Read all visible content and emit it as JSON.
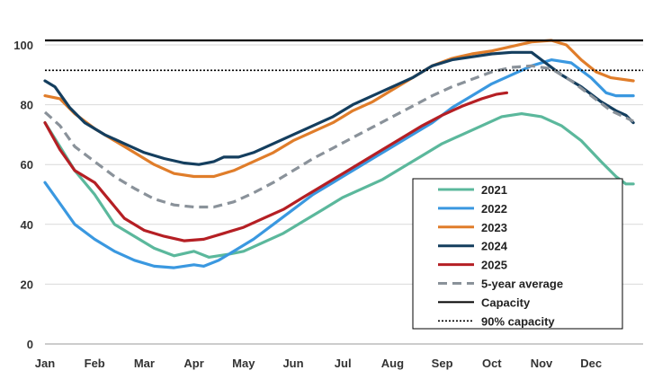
{
  "chart_data": {
    "type": "line",
    "title": "",
    "xlabel": "",
    "ylabel": "",
    "ylim": [
      0,
      100
    ],
    "yticks": [
      0,
      20,
      40,
      60,
      80,
      100
    ],
    "x_ticks": [
      "Jan",
      "Feb",
      "Mar",
      "Apr",
      "May",
      "Jun",
      "Jul",
      "Aug",
      "Sep",
      "Oct",
      "Nov",
      "Dec"
    ],
    "x_range_months": [
      0,
      11.85
    ],
    "grid": "horizontal",
    "legend_position": "bottom-right",
    "series": [
      {
        "name": "2021",
        "color": "#5bb89c",
        "style": "solid",
        "points": [
          [
            0,
            74
          ],
          [
            0.3,
            66
          ],
          [
            0.6,
            58
          ],
          [
            1,
            50
          ],
          [
            1.4,
            40
          ],
          [
            1.8,
            36
          ],
          [
            2.2,
            32
          ],
          [
            2.6,
            29.5
          ],
          [
            3,
            31
          ],
          [
            3.3,
            29
          ],
          [
            3.7,
            30
          ],
          [
            4,
            31
          ],
          [
            4.4,
            34
          ],
          [
            4.8,
            37
          ],
          [
            5.2,
            41
          ],
          [
            5.6,
            45
          ],
          [
            6,
            49
          ],
          [
            6.4,
            52
          ],
          [
            6.8,
            55
          ],
          [
            7.2,
            59
          ],
          [
            7.6,
            63
          ],
          [
            8,
            67
          ],
          [
            8.4,
            70
          ],
          [
            8.8,
            73
          ],
          [
            9.2,
            76
          ],
          [
            9.6,
            77
          ],
          [
            10,
            76
          ],
          [
            10.4,
            73
          ],
          [
            10.8,
            68
          ],
          [
            11.2,
            61
          ],
          [
            11.5,
            56
          ],
          [
            11.7,
            53.5
          ],
          [
            11.85,
            53.5
          ]
        ]
      },
      {
        "name": "2022",
        "color": "#3a98e0",
        "style": "solid",
        "points": [
          [
            0,
            54
          ],
          [
            0.3,
            47
          ],
          [
            0.6,
            40
          ],
          [
            1,
            35
          ],
          [
            1.4,
            31
          ],
          [
            1.8,
            28
          ],
          [
            2.2,
            26
          ],
          [
            2.6,
            25.5
          ],
          [
            3,
            26.5
          ],
          [
            3.2,
            26
          ],
          [
            3.5,
            28
          ],
          [
            3.8,
            31
          ],
          [
            4.2,
            35
          ],
          [
            4.6,
            40
          ],
          [
            5,
            45
          ],
          [
            5.4,
            50
          ],
          [
            5.8,
            54
          ],
          [
            6.2,
            58
          ],
          [
            6.6,
            62
          ],
          [
            7,
            66
          ],
          [
            7.4,
            70
          ],
          [
            7.8,
            74
          ],
          [
            8.2,
            79
          ],
          [
            8.6,
            83
          ],
          [
            9,
            87
          ],
          [
            9.4,
            90
          ],
          [
            9.8,
            93
          ],
          [
            10.2,
            95
          ],
          [
            10.6,
            94
          ],
          [
            11,
            89
          ],
          [
            11.3,
            84
          ],
          [
            11.5,
            83
          ],
          [
            11.85,
            83
          ]
        ]
      },
      {
        "name": "2023",
        "color": "#e07d2a",
        "style": "solid",
        "points": [
          [
            0,
            83
          ],
          [
            0.3,
            82
          ],
          [
            0.6,
            77
          ],
          [
            1,
            72
          ],
          [
            1.4,
            68
          ],
          [
            1.8,
            64
          ],
          [
            2.2,
            60
          ],
          [
            2.6,
            57
          ],
          [
            3,
            56
          ],
          [
            3.4,
            56
          ],
          [
            3.8,
            58
          ],
          [
            4.2,
            61
          ],
          [
            4.6,
            64
          ],
          [
            5,
            68
          ],
          [
            5.4,
            71
          ],
          [
            5.8,
            74
          ],
          [
            6.2,
            78
          ],
          [
            6.6,
            81
          ],
          [
            7,
            85
          ],
          [
            7.4,
            89
          ],
          [
            7.8,
            93
          ],
          [
            8.2,
            95.5
          ],
          [
            8.6,
            97
          ],
          [
            9,
            98
          ],
          [
            9.4,
            99.5
          ],
          [
            9.8,
            101
          ],
          [
            10.2,
            101.5
          ],
          [
            10.5,
            100
          ],
          [
            10.8,
            95
          ],
          [
            11.1,
            91
          ],
          [
            11.4,
            89
          ],
          [
            11.85,
            88
          ]
        ]
      },
      {
        "name": "2024",
        "color": "#143e5e",
        "style": "solid",
        "points": [
          [
            0,
            88
          ],
          [
            0.2,
            86
          ],
          [
            0.5,
            79
          ],
          [
            0.8,
            74
          ],
          [
            1.2,
            70
          ],
          [
            1.6,
            67
          ],
          [
            2,
            64
          ],
          [
            2.4,
            62
          ],
          [
            2.8,
            60.5
          ],
          [
            3.1,
            60
          ],
          [
            3.4,
            61
          ],
          [
            3.6,
            62.5
          ],
          [
            3.9,
            62.5
          ],
          [
            4.2,
            64
          ],
          [
            4.6,
            67
          ],
          [
            5,
            70
          ],
          [
            5.4,
            73
          ],
          [
            5.8,
            76
          ],
          [
            6.2,
            80
          ],
          [
            6.6,
            83
          ],
          [
            7,
            86
          ],
          [
            7.4,
            89
          ],
          [
            7.8,
            93
          ],
          [
            8.2,
            95
          ],
          [
            8.6,
            96
          ],
          [
            9,
            97
          ],
          [
            9.4,
            97.5
          ],
          [
            9.8,
            97.5
          ],
          [
            10,
            95
          ],
          [
            10.4,
            90
          ],
          [
            10.8,
            86
          ],
          [
            11.2,
            81
          ],
          [
            11.5,
            78
          ],
          [
            11.7,
            76.5
          ],
          [
            11.85,
            74
          ]
        ]
      },
      {
        "name": "2025",
        "color": "#b51f24",
        "style": "solid",
        "points": [
          [
            0,
            74
          ],
          [
            0.3,
            65
          ],
          [
            0.6,
            58
          ],
          [
            1,
            54
          ],
          [
            1.3,
            48
          ],
          [
            1.6,
            42
          ],
          [
            2,
            38
          ],
          [
            2.4,
            36
          ],
          [
            2.8,
            34.5
          ],
          [
            3.2,
            35
          ],
          [
            3.6,
            37
          ],
          [
            4,
            39
          ],
          [
            4.4,
            42
          ],
          [
            4.8,
            45
          ],
          [
            5.2,
            49
          ],
          [
            5.6,
            53
          ],
          [
            6,
            57
          ],
          [
            6.4,
            61
          ],
          [
            6.8,
            65
          ],
          [
            7.2,
            69
          ],
          [
            7.6,
            73
          ],
          [
            8,
            76.5
          ],
          [
            8.4,
            79.5
          ],
          [
            8.8,
            82
          ],
          [
            9.1,
            83.5
          ],
          [
            9.3,
            84
          ]
        ]
      },
      {
        "name": "5-year average",
        "color": "#8a929a",
        "style": "dashed",
        "points": [
          [
            0,
            77.5
          ],
          [
            0.3,
            73
          ],
          [
            0.6,
            66
          ],
          [
            1,
            61
          ],
          [
            1.4,
            56
          ],
          [
            1.8,
            52
          ],
          [
            2.2,
            48.5
          ],
          [
            2.6,
            46.5
          ],
          [
            3,
            45.8
          ],
          [
            3.4,
            45.8
          ],
          [
            3.8,
            47.5
          ],
          [
            4.2,
            50.5
          ],
          [
            4.6,
            54
          ],
          [
            5,
            58
          ],
          [
            5.4,
            62
          ],
          [
            5.8,
            65.5
          ],
          [
            6.2,
            69
          ],
          [
            6.6,
            72.5
          ],
          [
            7,
            76
          ],
          [
            7.4,
            79.5
          ],
          [
            7.8,
            83
          ],
          [
            8.2,
            86
          ],
          [
            8.6,
            88.5
          ],
          [
            9,
            91
          ],
          [
            9.4,
            92.5
          ],
          [
            9.8,
            93
          ],
          [
            10.2,
            92
          ],
          [
            10.6,
            88
          ],
          [
            11,
            83
          ],
          [
            11.4,
            78
          ],
          [
            11.85,
            74.5
          ]
        ]
      }
    ],
    "reference_lines": [
      {
        "name": "Capacity",
        "value": 101.5,
        "color": "#000000",
        "style": "solid"
      },
      {
        "name": "90% capacity",
        "value": 91.5,
        "color": "#000000",
        "style": "dotted"
      }
    ]
  }
}
